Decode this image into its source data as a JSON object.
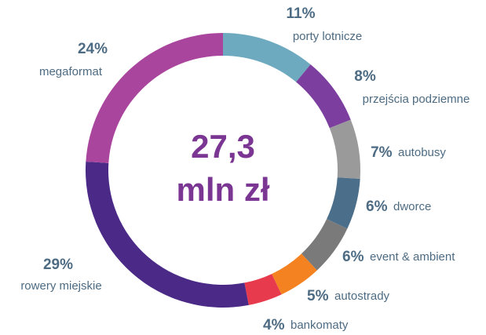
{
  "chart_data": {
    "type": "donut",
    "center_text": [
      "27,3",
      "mln zł"
    ],
    "categories": [
      "porty lotnicze",
      "przejścia podziemne",
      "autobusy",
      "dworce",
      "event & ambient",
      "autostrady",
      "bankomaty",
      "rowery miejskie",
      "megaformat"
    ],
    "values": [
      11,
      8,
      7,
      6,
      6,
      5,
      4,
      29,
      24
    ],
    "value_labels": [
      "11%",
      "8%",
      "7%",
      "6%",
      "6%",
      "5%",
      "4%",
      "29%",
      "24%"
    ],
    "colors": [
      "#6eaabf",
      "#7d3f9f",
      "#9a9a9a",
      "#4b6f8b",
      "#7a7a7a",
      "#f58220",
      "#e83a4d",
      "#4a2a86",
      "#a9459d"
    ]
  }
}
